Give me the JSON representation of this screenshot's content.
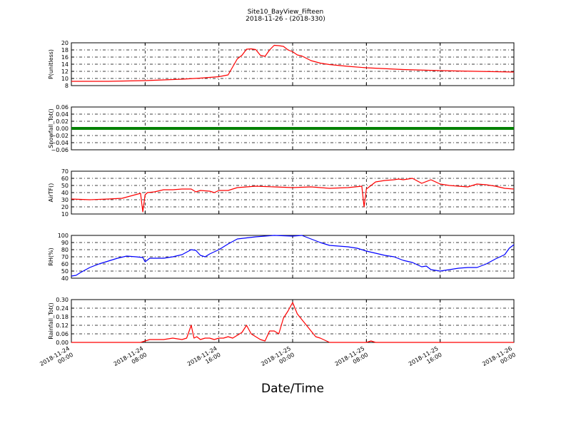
{
  "figure": {
    "title": "Site10_BayView_Fifteen",
    "subtitle": "2018-11-26 - (2018-330)",
    "xlabel": "Date/Time",
    "x_ticks": [
      "2018-11-24\n00:00",
      "2018-11-24\n08:00",
      "2018-11-24\n16:00",
      "2018-11-25\n00:00",
      "2018-11-25\n08:00",
      "2018-11-25\n16:00",
      "2018-11-26\n00:00"
    ]
  },
  "chart_data": [
    {
      "type": "line",
      "ylabel": "P(unitless)",
      "color": "#ff0000",
      "ylim": [
        8,
        20
      ],
      "y_ticks": [
        "8",
        "10",
        "12",
        "14",
        "16",
        "18",
        "20"
      ],
      "grid": true,
      "x_hours": [
        0,
        2,
        4,
        6,
        8,
        10,
        12,
        14,
        16,
        17,
        18,
        18.5,
        19,
        19.5,
        20,
        20.5,
        21,
        21.5,
        22,
        22.5,
        23,
        23.5,
        24,
        24.5,
        25,
        26,
        27,
        28,
        30,
        32,
        36,
        40,
        44,
        48
      ],
      "values": [
        9.2,
        9.2,
        9.2,
        9.3,
        9.4,
        9.6,
        9.8,
        10.1,
        10.5,
        11.0,
        15.5,
        16.5,
        18.2,
        18.3,
        18.1,
        16.5,
        16.2,
        18.0,
        19.3,
        19.2,
        19.0,
        18.0,
        17.5,
        16.6,
        16.3,
        15.0,
        14.3,
        13.9,
        13.4,
        13.0,
        12.5,
        12.2,
        12.0,
        11.8
      ]
    },
    {
      "type": "line",
      "ylabel": "Snowfall_Tot()",
      "color": "#008000",
      "ylim": [
        -0.06,
        0.06
      ],
      "y_ticks": [
        "−0.06",
        "−0.04",
        "−0.02",
        "0.00",
        "0.02",
        "0.04",
        "0.06"
      ],
      "grid": true,
      "x_hours": [
        0,
        48
      ],
      "values": [
        0,
        0
      ]
    },
    {
      "type": "line",
      "ylabel": "AirTF()",
      "color": "#ff0000",
      "ylim": [
        10,
        70
      ],
      "y_ticks": [
        "10",
        "20",
        "30",
        "40",
        "50",
        "60",
        "70"
      ],
      "grid": true,
      "x_hours": [
        0,
        2,
        4,
        5.5,
        7.5,
        7.75,
        8,
        8.25,
        9,
        10,
        11,
        12,
        13,
        13.5,
        14,
        15,
        15.5,
        16,
        17,
        18,
        20,
        22,
        24,
        26,
        28,
        30,
        31.5,
        31.75,
        32,
        32.5,
        33,
        34,
        35,
        35.5,
        36,
        37,
        38,
        39,
        40,
        41,
        42,
        43,
        44,
        45,
        46,
        47,
        48
      ],
      "values": [
        31,
        30,
        31,
        32,
        39,
        13,
        37,
        40,
        41,
        44,
        44,
        45,
        45,
        41,
        43,
        42,
        40,
        43,
        43,
        47,
        49,
        48,
        47,
        48,
        46,
        47,
        49,
        20,
        45,
        50,
        55,
        57,
        58,
        59,
        58,
        60,
        53,
        58,
        52,
        50,
        49,
        48,
        52,
        51,
        49,
        46,
        45
      ]
    },
    {
      "type": "line",
      "ylabel": "RH(%)",
      "color": "#0000ff",
      "ylim": [
        40,
        100
      ],
      "y_ticks": [
        "40",
        "50",
        "60",
        "70",
        "80",
        "90",
        "100"
      ],
      "grid": true,
      "x_hours": [
        0,
        0.5,
        1,
        2,
        3,
        4,
        5,
        6,
        7,
        7.75,
        8,
        8.5,
        10,
        11,
        12,
        13,
        13.5,
        14,
        14.5,
        15,
        16,
        17,
        18,
        20,
        22,
        24,
        25,
        26,
        27,
        28,
        30,
        31,
        32,
        33,
        34,
        35,
        36,
        37,
        38,
        38.5,
        39,
        40,
        41,
        42,
        43,
        44,
        45,
        46,
        47,
        47.5,
        48
      ],
      "values": [
        43,
        44,
        48,
        55,
        60,
        64,
        68,
        71,
        70,
        69,
        63,
        68,
        68,
        70,
        73,
        80,
        79,
        72,
        70,
        74,
        80,
        88,
        95,
        98,
        100,
        99,
        100,
        95,
        90,
        86,
        84,
        82,
        78,
        75,
        72,
        70,
        65,
        62,
        56,
        57,
        52,
        50,
        52,
        54,
        55,
        55,
        60,
        67,
        73,
        82,
        87
      ]
    },
    {
      "type": "line",
      "ylabel": "Rainfall_Tot()",
      "color": "#ff0000",
      "ylim": [
        0,
        0.3
      ],
      "y_ticks": [
        "0.00",
        "0.06",
        "0.12",
        "0.18",
        "0.24",
        "0.30"
      ],
      "grid": true,
      "x_hours": [
        0,
        7.5,
        8.5,
        9,
        10,
        11,
        12,
        12.5,
        13,
        13.3,
        13.6,
        14,
        14.5,
        15,
        15.5,
        16,
        16.5,
        17,
        17.5,
        18,
        18.5,
        19,
        19.5,
        20,
        20.5,
        21,
        21.5,
        22,
        22.5,
        23,
        23.5,
        24,
        24.5,
        25,
        25.5,
        26,
        26.5,
        27,
        28,
        30,
        32,
        32.5,
        33,
        34,
        36,
        40,
        44,
        48
      ],
      "values": [
        0,
        0,
        0.02,
        0.02,
        0.02,
        0.03,
        0.02,
        0.03,
        0.12,
        0.03,
        0.04,
        0.02,
        0.03,
        0.03,
        0.02,
        0.03,
        0.03,
        0.04,
        0.03,
        0.05,
        0.07,
        0.12,
        0.06,
        0.04,
        0.02,
        0.01,
        0.08,
        0.08,
        0.06,
        0.17,
        0.22,
        0.28,
        0.2,
        0.16,
        0.12,
        0.08,
        0.04,
        0.03,
        0.0,
        0.0,
        0.0,
        0.01,
        0.0,
        0.0,
        0.0,
        0.0,
        0.0,
        0.0
      ]
    }
  ]
}
